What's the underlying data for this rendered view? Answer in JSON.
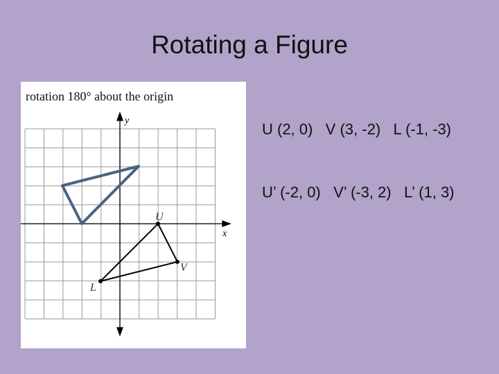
{
  "title": "Rotating a Figure",
  "figure": {
    "caption": "rotation 180° about the origin",
    "x_label": "x",
    "y_label": "y",
    "points": [
      "U",
      "V",
      "L"
    ]
  },
  "coordinates": {
    "original": "U (2, 0)   V (3, -2)   L (-1, -3)",
    "rotated": "U’ (-2, 0)   V’ (-3, 2)   L’ (1, 3)"
  }
}
